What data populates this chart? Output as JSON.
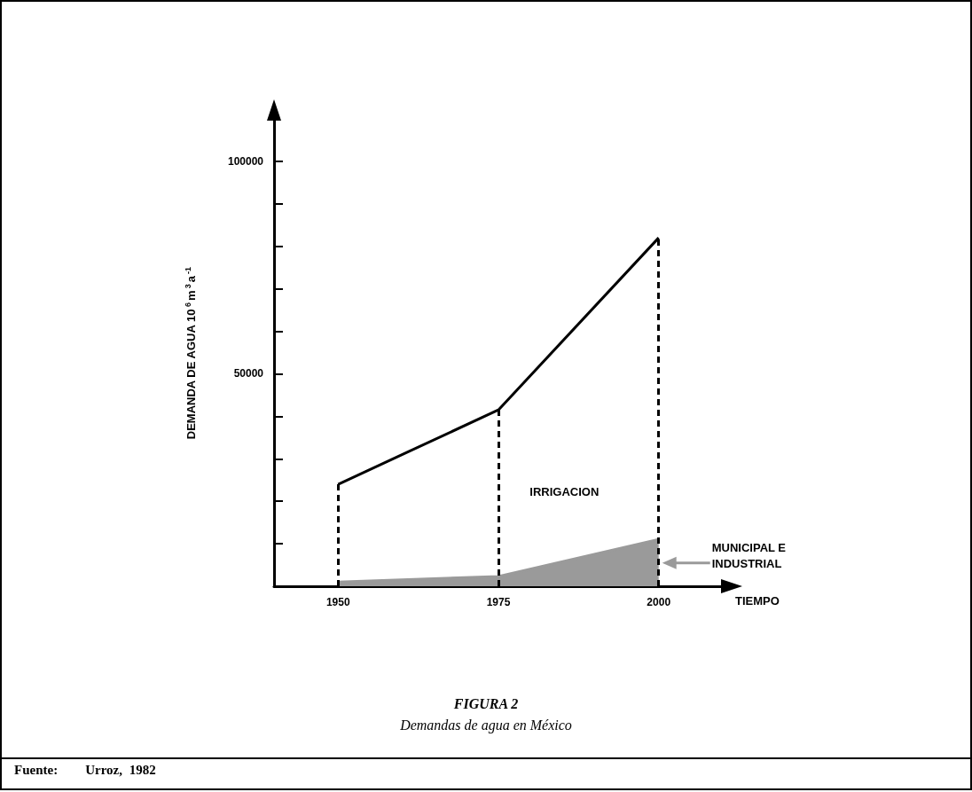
{
  "chart_data": {
    "type": "area",
    "stacked": true,
    "title": "FIGURA 2",
    "subtitle": "Demandas de agua en México",
    "xlabel": "TIEMPO",
    "ylabel": "DEMANDA DE AGUA 10$^{6}$m$^{3}$a$^{-1}$",
    "annotations": [
      "Fuente:    Urroz, 1982"
    ],
    "x": [
      1950,
      1975,
      2000
    ],
    "xlim": [
      1940,
      2010
    ],
    "xticks": [
      1950,
      1975,
      2000
    ],
    "ylim": [
      0,
      110000
    ],
    "yticks": [
      {
        "value": 10000,
        "label": null
      },
      {
        "value": 20000,
        "label": null
      },
      {
        "value": 30000,
        "label": null
      },
      {
        "value": 40000,
        "label": null
      },
      50000,
      {
        "value": 60000,
        "label": null
      },
      {
        "value": 70000,
        "label": null
      },
      {
        "value": 80000,
        "label": null
      },
      {
        "value": 90000,
        "label": null
      },
      100000
    ],
    "series": [
      {
        "name": "MUNICIPAL E INDUSTRIAL",
        "color": "#9a9a9a",
        "values": [
          1000,
          2300,
          11000
        ]
      },
      {
        "name": "IRRIGACION",
        "color": "#000000",
        "values": [
          23000,
          39200,
          71000
        ]
      }
    ],
    "ref_lines": [
      {
        "axis": "x",
        "value": 1950,
        "line_style": "dashed",
        "color": "#000000"
      },
      {
        "axis": "x",
        "value": 1975,
        "line_style": "dashed",
        "color": "#000000"
      },
      {
        "axis": "x",
        "value": 2000,
        "line_style": "dashed",
        "color": "#000000"
      }
    ]
  }
}
